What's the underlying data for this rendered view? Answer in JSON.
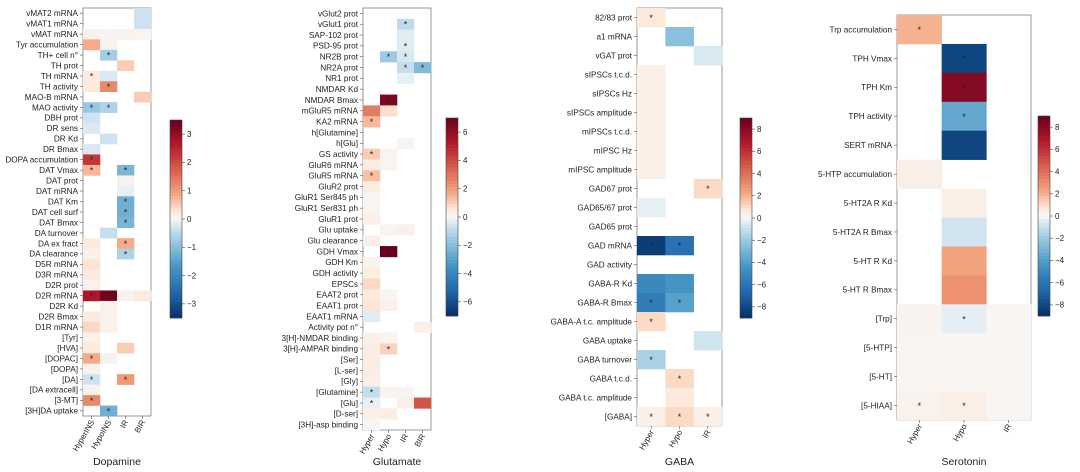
{
  "figure": {
    "caption": "Heatmaps of reported effect sizes per neurotransmitter system"
  },
  "chart_data": [
    {
      "type": "heatmap",
      "title": "Dopamine",
      "columns": [
        "HyperINS",
        "HypoINS",
        "IR",
        "BIR"
      ],
      "rows": [
        "vMAT2 mRNA",
        "vMAT1 mRNA",
        "vMAT mRNA",
        "Tyr accumulation",
        "TH+ cell n°",
        "TH prot",
        "TH mRNA",
        "TH activity",
        "MAO-B mRNA",
        "MAO activity",
        "DBH prot",
        "DR sens",
        "DR Kd",
        "DR Bmax",
        "DOPA accumulation",
        "DAT Vmax",
        "DAT prot",
        "DAT mRNA",
        "DAT Km",
        "DAT cell surf",
        "DAT Bmax",
        "DA turnover",
        "DA ex fract",
        "DA clearance",
        "D5R mRNA",
        "D3R mRNA",
        "D2R prot",
        "D2R mRNA",
        "D2R Kd",
        "D2R Bmax",
        "D1R mRNA",
        "[Tyr]",
        "[HVA]",
        "[DOPAC]",
        "[DOPA]",
        "[DA]",
        "[DA extracell]",
        "[3-MT]",
        "[3H]DA uptake"
      ],
      "values": [
        [
          null,
          null,
          null,
          -0.3
        ],
        [
          null,
          null,
          null,
          -0.3
        ],
        [
          0.1,
          0.05,
          0.1,
          0.05
        ],
        [
          0.8,
          0.1,
          null,
          null
        ],
        [
          null,
          -0.7,
          null,
          null
        ],
        [
          null,
          null,
          0.5,
          null
        ],
        [
          0.2,
          -0.2,
          null,
          null
        ],
        [
          0.2,
          1.2,
          null,
          null
        ],
        [
          null,
          null,
          null,
          0.5
        ],
        [
          -0.8,
          -0.6,
          null,
          null
        ],
        [
          -0.3,
          null,
          null,
          null
        ],
        [
          -0.2,
          null,
          null,
          null
        ],
        [
          null,
          -0.3,
          null,
          null
        ],
        [
          -0.2,
          null,
          null,
          null
        ],
        [
          2.2,
          null,
          null,
          null
        ],
        [
          0.7,
          null,
          -1.1,
          null
        ],
        [
          null,
          null,
          0.1,
          null
        ],
        [
          null,
          null,
          -0.1,
          null
        ],
        [
          null,
          null,
          -1.2,
          null
        ],
        [
          null,
          null,
          -1.2,
          null
        ],
        [
          null,
          null,
          -1.1,
          null
        ],
        [
          null,
          -0.4,
          null,
          null
        ],
        [
          0.2,
          null,
          0.8,
          null
        ],
        [
          0.1,
          null,
          -0.6,
          null
        ],
        [
          0.3,
          null,
          null,
          null
        ],
        [
          0.2,
          null,
          null,
          null
        ],
        [
          0.1,
          null,
          null,
          null
        ],
        [
          2.6,
          3.3,
          0.1,
          0.2
        ],
        [
          null,
          0.1,
          null,
          null
        ],
        [
          0.2,
          0.1,
          null,
          null
        ],
        [
          0.4,
          0.1,
          null,
          null
        ],
        [
          0.1,
          null,
          null,
          null
        ],
        [
          0.2,
          null,
          0.5,
          null
        ],
        [
          0.8,
          0.1,
          null,
          null
        ],
        [
          0.1,
          null,
          null,
          null
        ],
        [
          -0.3,
          null,
          1.0,
          null
        ],
        [
          0.1,
          null,
          null,
          null
        ],
        [
          1.2,
          null,
          null,
          null
        ],
        [
          null,
          -1.2,
          null,
          null
        ]
      ],
      "significant": [
        "TH+ cell n°|HypoINS",
        "TH mRNA|HyperINS",
        "TH activity|HypoINS",
        "MAO activity|HyperINS",
        "MAO activity|HypoINS",
        "DOPA accumulation|HyperINS",
        "DAT Vmax|HyperINS",
        "DAT Vmax|IR",
        "DAT Km|IR",
        "DAT cell surf|IR",
        "DAT Bmax|IR",
        "DA ex fract|IR",
        "DA clearance|IR",
        "D2R mRNA|HyperINS",
        "[DOPAC]|HyperINS",
        "[DA]|HyperINS",
        "[DA]|IR",
        "[3-MT]|HyperINS",
        "[3H]DA uptake|HypoINS"
      ],
      "color_range": [
        -3.4,
        3.4
      ],
      "colorbar_ticks": [
        "3",
        "2",
        "1",
        "0",
        "−1",
        "−2",
        "−3"
      ]
    },
    {
      "type": "heatmap",
      "title": "Glutamate",
      "columns": [
        "Hyper",
        "Hypo",
        "IR",
        "BIR"
      ],
      "rows": [
        "vGlut2 prot",
        "vGlut1 prot",
        "SAP-102 prot",
        "PSD-95 prot",
        "NR2B prot",
        "NR2A prot",
        "NR1 prot",
        "NMDAR Kd",
        "NMDAR Bmax",
        "mGluR5 mRNA",
        "KA2 mRNA",
        "h[Glutamine]",
        "h[Glu]",
        "GS activity",
        "GluR6 mRNA",
        "GluR5 mRNA",
        "GluR2 prot",
        "GluR1 Ser845 ph",
        "GluR1 Ser831 ph",
        "GluR1 prot",
        "Glu uptake",
        "Glu clearance",
        "GDH Vmax",
        "GDH Km",
        "GDH activity",
        "EPSCs",
        "EAAT2 prot",
        "EAAT1 prot",
        "EAAT1 mRNA",
        "Activity pot n°",
        "3[H]-NMDAR binding",
        "3[H]-AMPAR binding",
        "[Ser]",
        "[L-ser]",
        "[Gly]",
        "[Glutamine]",
        "[Glu]",
        "[D-ser]",
        "[3H]-asp binding"
      ],
      "values": [
        [
          null,
          null,
          null,
          null
        ],
        [
          null,
          null,
          -0.8,
          null
        ],
        [
          null,
          null,
          -0.3,
          null
        ],
        [
          null,
          null,
          -0.3,
          null
        ],
        [
          null,
          -1.3,
          -0.4,
          null
        ],
        [
          null,
          null,
          -0.7,
          -1.8
        ],
        [
          null,
          null,
          -0.2,
          null
        ],
        [
          null,
          null,
          null,
          null
        ],
        [
          null,
          5.6,
          null,
          null
        ],
        [
          2.4,
          0.6,
          null,
          null
        ],
        [
          1.2,
          null,
          null,
          null
        ],
        [
          null,
          null,
          null,
          null
        ],
        [
          null,
          null,
          0.1,
          null
        ],
        [
          0.9,
          0.1,
          null,
          null
        ],
        [
          0.3,
          0.1,
          null,
          null
        ],
        [
          1.1,
          null,
          null,
          null
        ],
        [
          0.3,
          null,
          null,
          null
        ],
        [
          0.1,
          null,
          null,
          null
        ],
        [
          0.1,
          null,
          null,
          null
        ],
        [
          0.2,
          null,
          null,
          null
        ],
        [
          null,
          0.1,
          0.2,
          null
        ],
        [
          0.2,
          null,
          null,
          null
        ],
        [
          null,
          6.0,
          null,
          null
        ],
        [
          0.1,
          null,
          null,
          null
        ],
        [
          0.3,
          null,
          null,
          null
        ],
        [
          0.7,
          null,
          null,
          null
        ],
        [
          0.4,
          0.1,
          null,
          null
        ],
        [
          0.5,
          0.2,
          null,
          null
        ],
        [
          -0.3,
          null,
          null,
          null
        ],
        [
          null,
          null,
          null,
          0.2
        ],
        [
          0.2,
          0.1,
          null,
          null
        ],
        [
          0.3,
          0.8,
          null,
          null
        ],
        [
          0.3,
          null,
          null,
          null
        ],
        [
          0.3,
          null,
          null,
          null
        ],
        [
          0.2,
          null,
          null,
          null
        ],
        [
          -0.7,
          0.1,
          0.1,
          null
        ],
        [
          -0.2,
          null,
          0.2,
          3.2
        ],
        [
          0.2,
          0.3,
          null,
          null
        ],
        [
          0.1,
          null,
          null,
          null
        ]
      ],
      "significant": [
        "vGlut1 prot|IR",
        "PSD-95 prot|IR",
        "NR2B prot|Hypo",
        "NR2B prot|IR",
        "NR2A prot|IR",
        "NR2A prot|BIR",
        "NMDAR Bmax|Hypo",
        "KA2 mRNA|Hyper",
        "GS activity|Hyper",
        "GluR5 mRNA|Hyper",
        "3[H]-AMPAR binding|Hypo",
        "[Glutamine]|Hyper",
        "[Glu]|Hyper"
      ],
      "color_range": [
        -6,
        6
      ],
      "colorbar_ticks": [
        "6",
        "4",
        "2",
        "0",
        "−2",
        "−4",
        "−6"
      ]
    },
    {
      "type": "heatmap",
      "title": "GABA",
      "columns": [
        "Hyper",
        "Hypo",
        "IR"
      ],
      "rows": [
        "82/83 prot",
        "a1 mRNA",
        "vGAT prot",
        "sIPSCs t.c.d.",
        "sIPSCs Hz",
        "sIPSCs amplitude",
        "mIPSCs t.c.d.",
        "mIPSC Hz",
        "mIPSC amplitude",
        "GAD67 prot",
        "GAD65/67 prot",
        "GAD65 prot",
        "GAD mRNA",
        "GAD activity",
        "GABA-R Kd",
        "GABA-R Bmax",
        "GABA-A t.c. amplitude",
        "GABA uptake",
        "GABA turnover",
        "GABA t.c.d.",
        "GABA t.c. amplitude",
        "[GABA]"
      ],
      "values": [
        [
          0.5,
          null,
          null
        ],
        [
          null,
          -2.2,
          null
        ],
        [
          null,
          null,
          -0.5
        ],
        [
          0.3,
          null,
          null
        ],
        [
          0.3,
          null,
          null
        ],
        [
          0.3,
          null,
          null
        ],
        [
          0.3,
          null,
          null
        ],
        [
          0.3,
          null,
          null
        ],
        [
          0.3,
          null,
          null
        ],
        [
          null,
          null,
          0.9
        ],
        [
          -0.3,
          null,
          null
        ],
        [
          null,
          null,
          null
        ],
        [
          -7.5,
          -5.5,
          null
        ],
        [
          null,
          null,
          null
        ],
        [
          -4.5,
          -4.0,
          null
        ],
        [
          -5.0,
          -3.5,
          null
        ],
        [
          0.9,
          null,
          null
        ],
        [
          null,
          null,
          -0.7
        ],
        [
          -1.5,
          null,
          null
        ],
        [
          null,
          0.9,
          null
        ],
        [
          null,
          0.5,
          null
        ],
        [
          0.3,
          0.9,
          0.3
        ]
      ],
      "significant": [
        "82/83 prot|Hyper",
        "GAD67 prot|IR",
        "GAD mRNA|Hyper",
        "GAD mRNA|Hypo",
        "GABA-R Bmax|Hyper",
        "GABA-R Bmax|Hypo",
        "GABA-A t.c. amplitude|Hyper",
        "GABA turnover|Hyper",
        "GABA t.c.d.|Hypo",
        "[GABA]|Hyper",
        "[GABA]|Hypo",
        "[GABA]|IR"
      ],
      "color_range": [
        -8,
        8
      ],
      "colorbar_ticks": [
        "8",
        "6",
        "4",
        "2",
        "0",
        "−2",
        "−4",
        "−6",
        "−8"
      ]
    },
    {
      "type": "heatmap",
      "title": "Serotonin",
      "columns": [
        "Hyper",
        "Hypo",
        "IR"
      ],
      "rows": [
        "Trp accumulation",
        "TPH Vmax",
        "TPH Km",
        "TPH activity",
        "SERT mRNA",
        "5-HTP accumulation",
        "5-HT2A R Kd",
        "5-HT2A R Bmax",
        "5-HT R Kd",
        "5-HT R Bmax",
        "[Trp]",
        "[5-HTP]",
        "[5-HT]",
        "[5-HIAA]"
      ],
      "values": [
        [
          2.2,
          null,
          null
        ],
        [
          null,
          -9.0,
          null
        ],
        [
          null,
          9.0,
          null
        ],
        [
          null,
          -4.0,
          null
        ],
        [
          null,
          -9.0,
          null
        ],
        [
          0.4,
          null,
          null
        ],
        [
          null,
          0.4,
          null
        ],
        [
          null,
          -0.8,
          null
        ],
        [
          null,
          2.6,
          null
        ],
        [
          null,
          3.2,
          null
        ],
        [
          0.2,
          -0.4,
          0.1
        ],
        [
          0.1,
          0.1,
          0.1
        ],
        [
          0.1,
          0.1,
          0.1
        ],
        [
          0.3,
          0.4,
          0.1
        ]
      ],
      "significant": [
        "Trp accumulation|Hyper",
        "TPH Vmax|Hypo",
        "TPH Km|Hypo",
        "TPH activity|Hypo",
        "[Trp]|Hypo",
        "[5-HIAA]|Hyper",
        "[5-HIAA]|Hypo"
      ],
      "color_range": [
        -10,
        10
      ],
      "colorbar_ticks": [
        "8",
        "6",
        "4",
        "2",
        "0",
        "−2",
        "−4",
        "−6",
        "−8"
      ]
    }
  ]
}
